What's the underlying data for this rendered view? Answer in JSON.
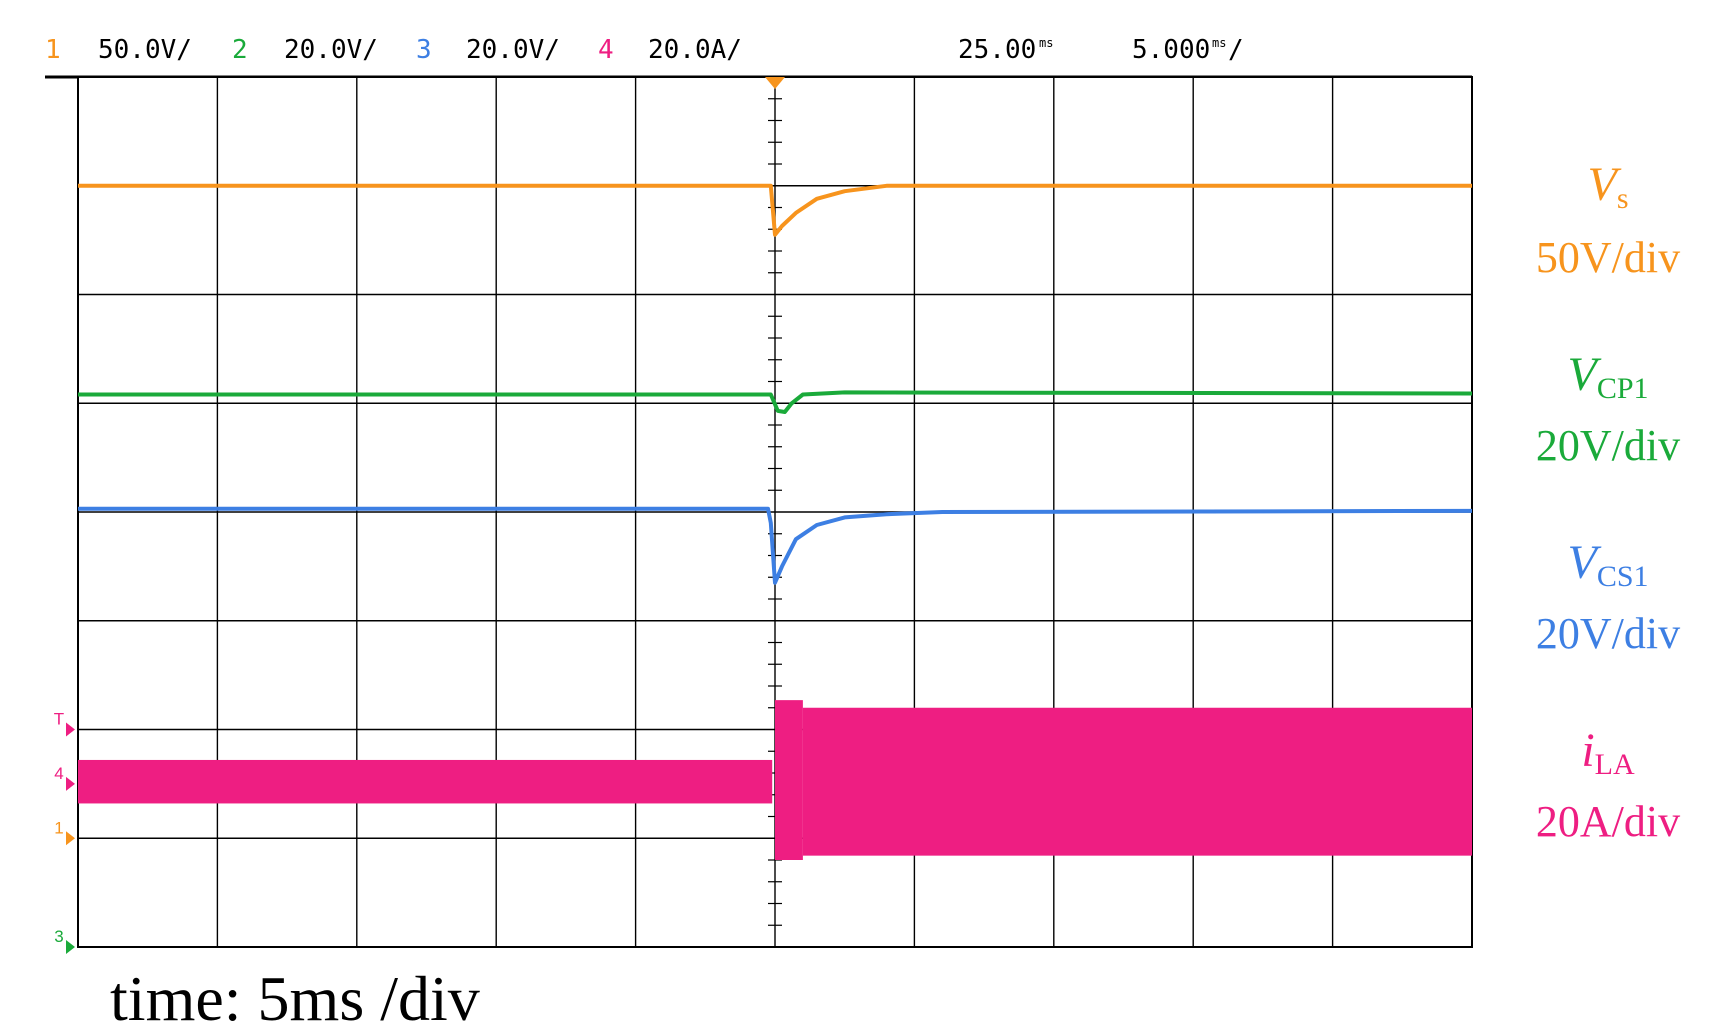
{
  "chart_data": {
    "type": "line",
    "header": {
      "channels": [
        {
          "num": "1",
          "scale": "50.0V/",
          "color": "#f7941d"
        },
        {
          "num": "2",
          "scale": "20.0V/",
          "color": "#1aaa3a"
        },
        {
          "num": "3",
          "scale": "20.0V/",
          "color": "#3d7fe3"
        },
        {
          "num": "4",
          "scale": "20.0A/",
          "color": "#ee1e82"
        }
      ],
      "trigger_position": "25.00",
      "trigger_position_unit": "ms",
      "timebase": "5.000",
      "timebase_unit": "ms"
    },
    "x_unit": "division",
    "xlim": [
      0,
      10
    ],
    "ylim": [
      0,
      8
    ],
    "grid": true,
    "traces": [
      {
        "channel": "1",
        "name": "V",
        "sub": "s",
        "scale_label": "50V/div",
        "color": "#f7941d",
        "kind": "line",
        "points": [
          [
            0,
            7.0
          ],
          [
            4.97,
            7.0
          ],
          [
            5.0,
            6.55
          ],
          [
            5.05,
            6.63
          ],
          [
            5.15,
            6.75
          ],
          [
            5.3,
            6.88
          ],
          [
            5.5,
            6.95
          ],
          [
            5.8,
            7.0
          ],
          [
            10,
            7.0
          ]
        ]
      },
      {
        "channel": "2",
        "name": "V",
        "sub": "CP1",
        "scale_label": "20V/div",
        "color": "#1aaa3a",
        "kind": "line",
        "points": [
          [
            0,
            5.08
          ],
          [
            4.97,
            5.08
          ],
          [
            5.02,
            4.93
          ],
          [
            5.07,
            4.92
          ],
          [
            5.12,
            5.0
          ],
          [
            5.2,
            5.08
          ],
          [
            5.5,
            5.1
          ],
          [
            10,
            5.09
          ]
        ]
      },
      {
        "channel": "3",
        "name": "V",
        "sub": "CS1",
        "scale_label": "20V/div",
        "color": "#3d7fe3",
        "kind": "line",
        "points": [
          [
            0,
            4.03
          ],
          [
            4.95,
            4.03
          ],
          [
            4.97,
            3.9
          ],
          [
            5.0,
            3.35
          ],
          [
            5.05,
            3.5
          ],
          [
            5.15,
            3.75
          ],
          [
            5.3,
            3.88
          ],
          [
            5.5,
            3.95
          ],
          [
            5.8,
            3.98
          ],
          [
            6.2,
            4.0
          ],
          [
            10,
            4.01
          ]
        ]
      },
      {
        "channel": "4",
        "name": "i",
        "sub": "LA",
        "scale_label": "20A/div",
        "color": "#ee1e82",
        "kind": "envelope",
        "segments": [
          {
            "x": [
              0,
              4.98
            ],
            "upper": 1.72,
            "lower": 1.32
          },
          {
            "x": [
              5.0,
              5.2
            ],
            "upper": 2.27,
            "lower": 0.8
          },
          {
            "x": [
              5.2,
              10
            ],
            "upper": 2.2,
            "lower": 0.84
          }
        ]
      }
    ],
    "markers": [
      {
        "text": "T",
        "y": 2.0,
        "color": "#ee1e82"
      },
      {
        "text": "4",
        "y": 1.5,
        "color": "#ee1e82"
      },
      {
        "text": "1",
        "y": 1.0,
        "color": "#f7941d"
      },
      {
        "text": "3",
        "y": 0.0,
        "color": "#1aaa3a"
      }
    ],
    "time_caption": "time: 5ms /div"
  }
}
